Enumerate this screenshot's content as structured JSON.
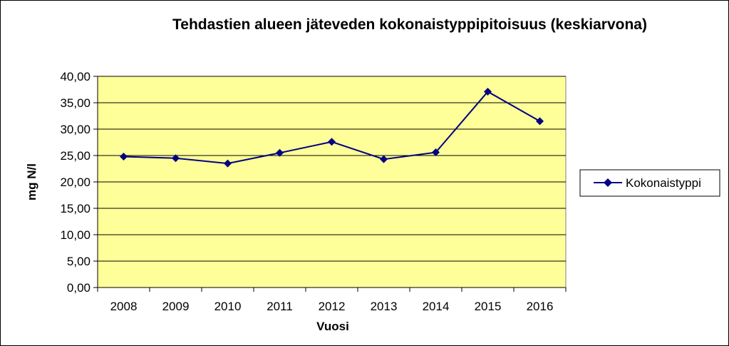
{
  "chart_data": {
    "type": "line",
    "title": "Tehdastien alueen jäteveden kokonaistyppipitoisuus  (keskiarvona)",
    "xlabel": "Vuosi",
    "ylabel": "mg N/l",
    "categories": [
      "2008",
      "2009",
      "2010",
      "2011",
      "2012",
      "2013",
      "2014",
      "2015",
      "2016"
    ],
    "series": [
      {
        "name": "Kokonaistyppi",
        "values": [
          24.8,
          24.5,
          23.5,
          25.5,
          27.6,
          24.3,
          25.6,
          37.1,
          31.5
        ]
      }
    ],
    "ylim": [
      0,
      40
    ],
    "yticks": [
      "0,00",
      "5,00",
      "10,00",
      "15,00",
      "20,00",
      "25,00",
      "30,00",
      "35,00",
      "40,00"
    ],
    "legend_position": "right",
    "colors": {
      "plot_bg": "#FFFF99",
      "line": "#000080",
      "grid": "#000000",
      "border": "#000000"
    }
  }
}
